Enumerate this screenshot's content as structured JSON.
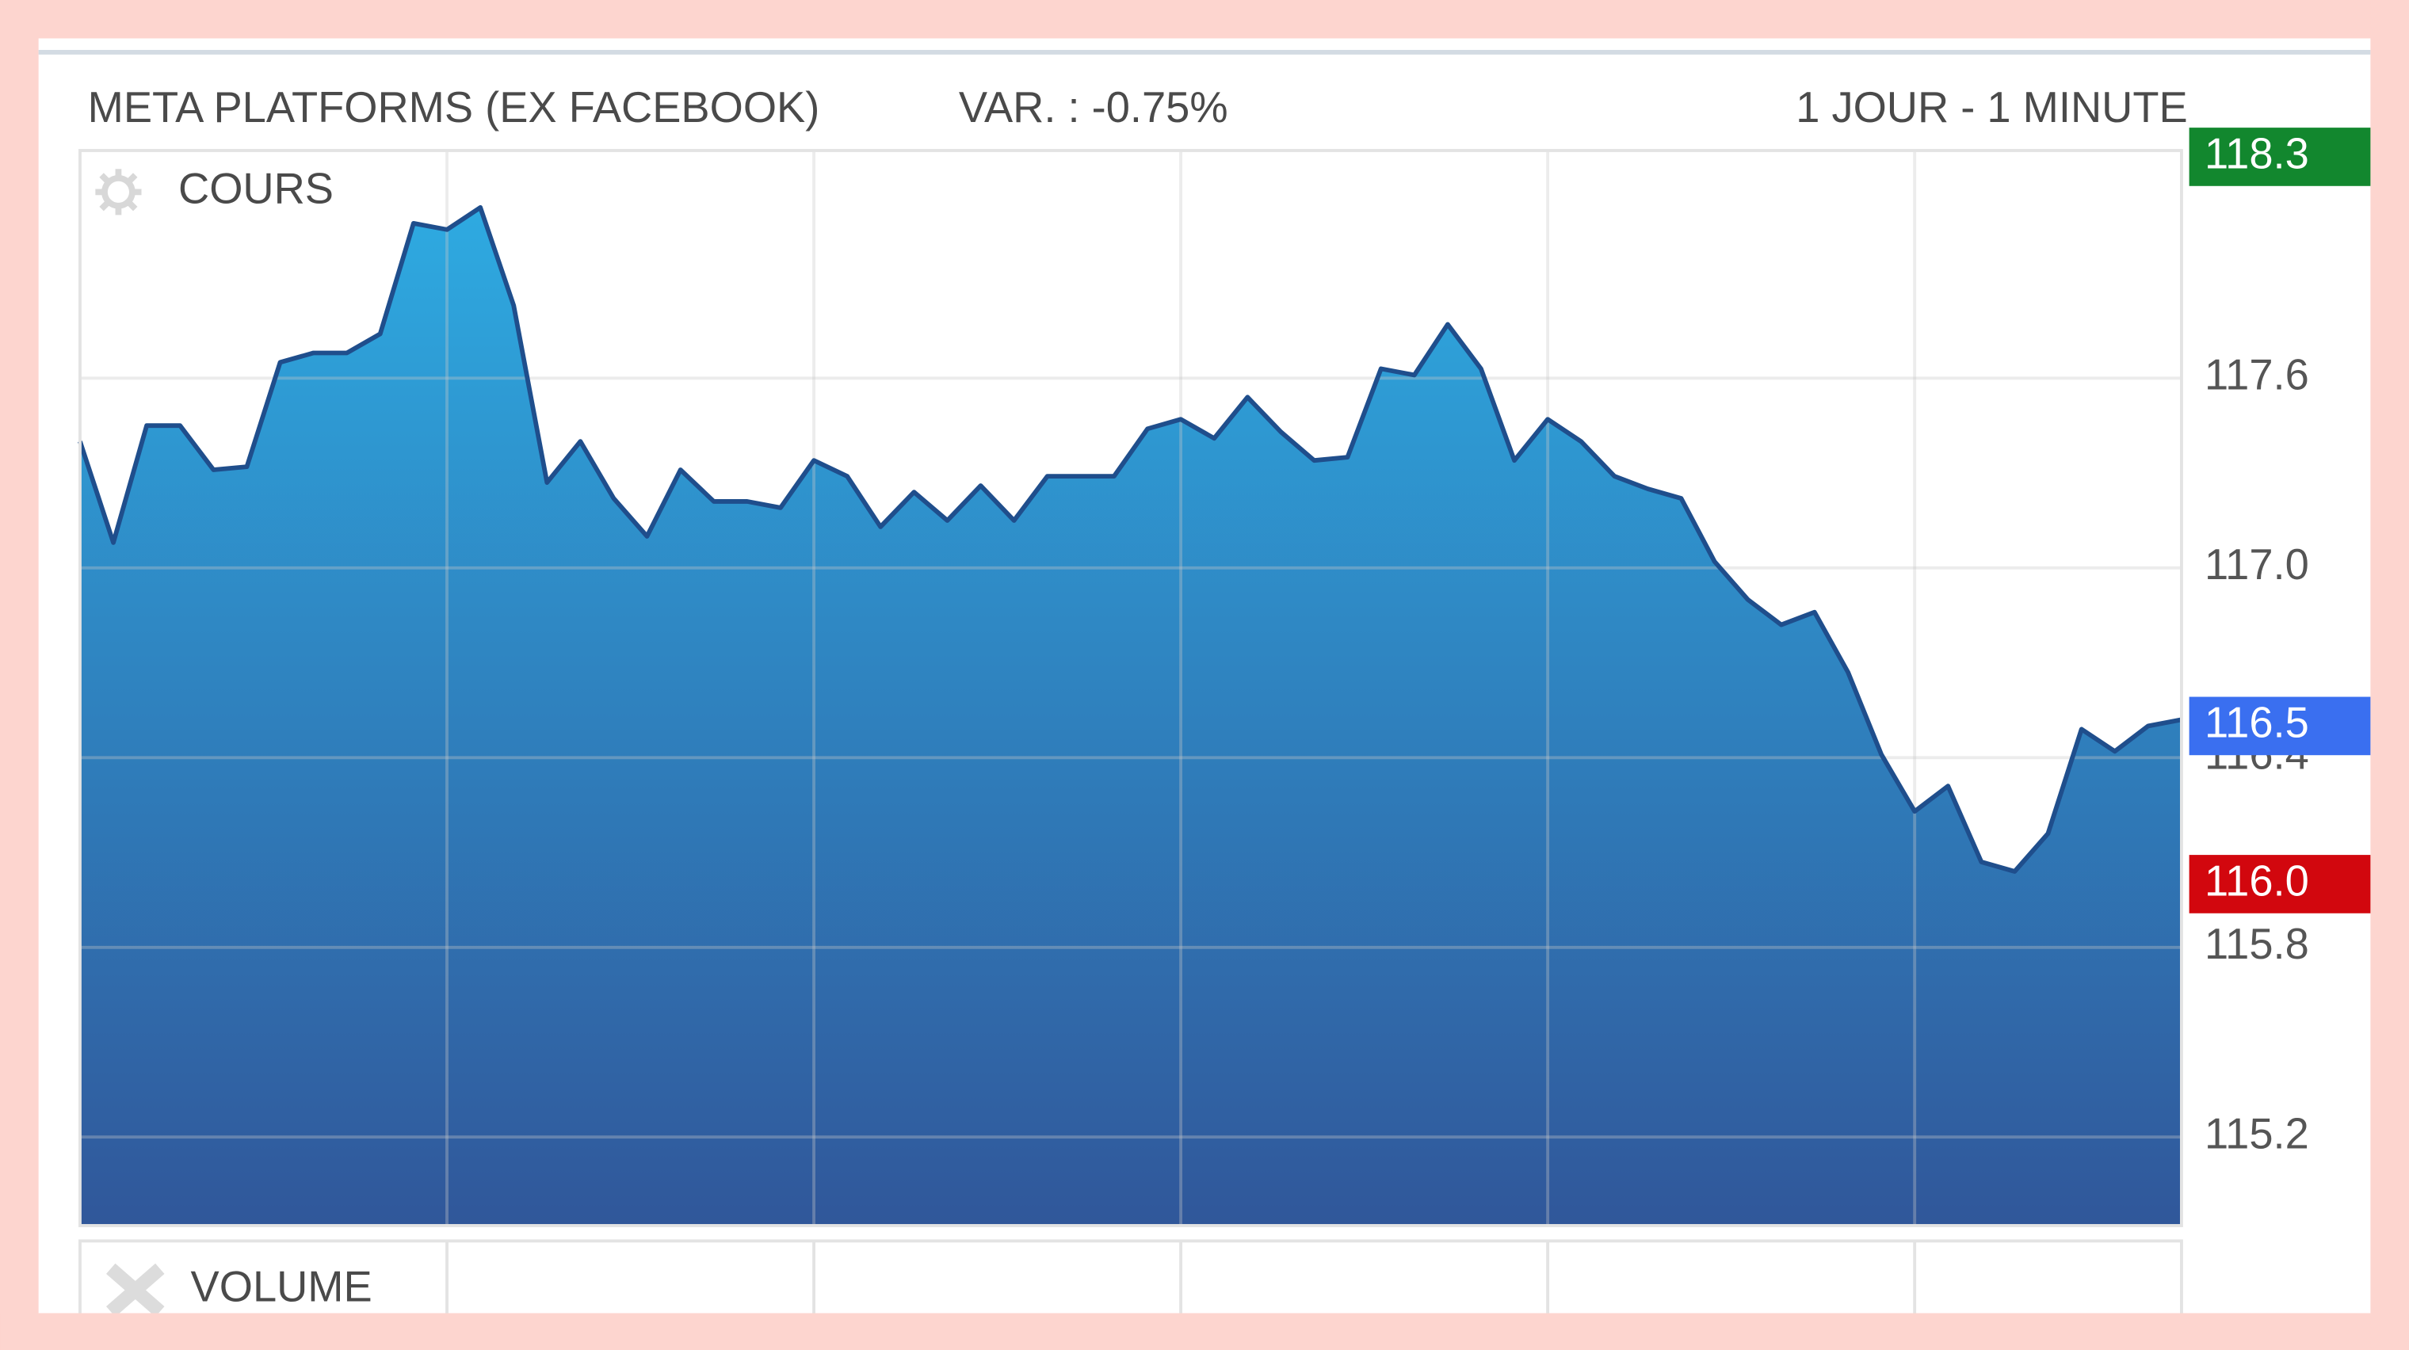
{
  "header": {
    "title": "META PLATFORMS (EX FACEBOOK)",
    "change": "VAR. : -0.75%",
    "period": "1 JOUR - 1 MINUTE"
  },
  "chart_data": {
    "type": "area",
    "panel_label": "COURS",
    "volume_label": "VOLUME",
    "x": [
      0,
      1,
      2,
      3,
      4,
      5,
      6,
      7,
      8,
      9,
      10,
      11,
      12,
      13,
      14,
      15,
      16,
      17,
      18,
      19,
      20,
      21,
      22,
      23,
      24,
      25,
      26,
      27,
      28,
      29,
      30,
      31,
      32,
      33,
      34,
      35,
      36,
      37,
      38,
      39,
      40,
      41,
      42,
      43,
      44,
      45,
      46,
      47,
      48,
      49,
      50,
      51,
      52,
      53,
      54,
      55,
      56,
      57,
      58,
      59,
      60,
      61,
      62,
      63
    ],
    "values": [
      117.4,
      117.08,
      117.45,
      117.45,
      117.31,
      117.32,
      117.65,
      117.68,
      117.68,
      117.74,
      118.09,
      118.07,
      118.14,
      117.83,
      117.27,
      117.4,
      117.22,
      117.1,
      117.31,
      117.21,
      117.21,
      117.19,
      117.34,
      117.29,
      117.13,
      117.24,
      117.15,
      117.26,
      117.15,
      117.29,
      117.29,
      117.29,
      117.44,
      117.47,
      117.41,
      117.54,
      117.43,
      117.34,
      117.35,
      117.63,
      117.61,
      117.77,
      117.63,
      117.34,
      117.47,
      117.4,
      117.29,
      117.25,
      117.22,
      117.02,
      116.9,
      116.82,
      116.86,
      116.67,
      116.41,
      116.23,
      116.31,
      116.07,
      116.04,
      116.16,
      116.49,
      116.42,
      116.5,
      116.52
    ],
    "line_color": "#1f4e8c",
    "fill_colors": [
      "#2eaae1",
      "#30579a"
    ],
    "xlim": [
      0,
      63
    ],
    "xgrid": [
      11,
      22,
      33,
      44,
      55
    ],
    "ylim": [
      114.92,
      118.32
    ],
    "yticks": [
      117.6,
      {
        "value": 117,
        "label": "117.0"
      },
      116.4,
      115.8,
      115.2
    ],
    "grid": true,
    "markers": [
      {
        "value": 118.3,
        "label": "118.3",
        "color": "#12872e"
      },
      {
        "value": 116.5,
        "label": "116.5",
        "color": "#3a6ff0"
      },
      {
        "value": 116,
        "label": "116.0",
        "color": "#d2070e"
      }
    ]
  }
}
